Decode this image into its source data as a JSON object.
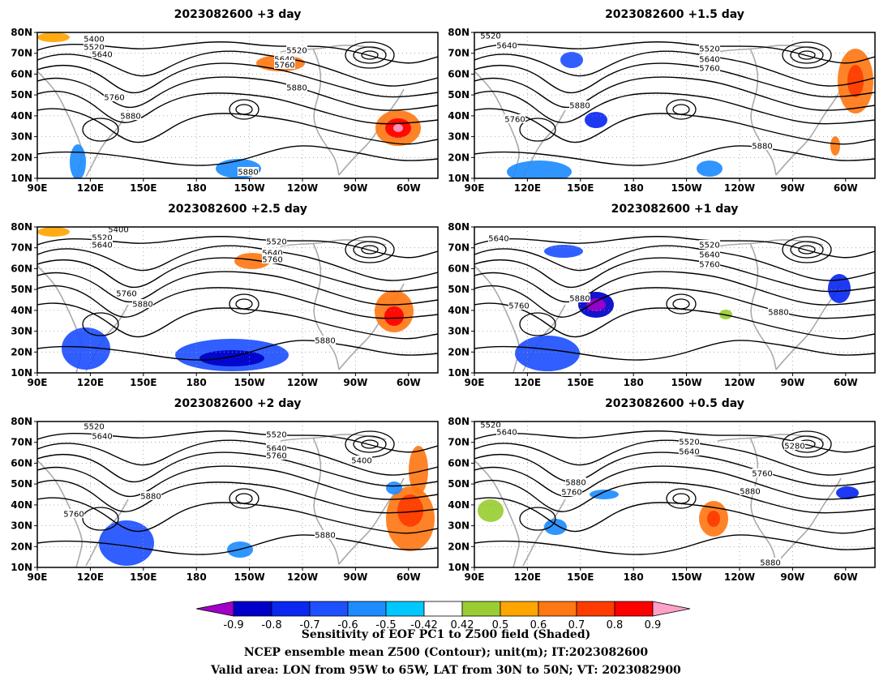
{
  "panels": [
    {
      "title": "2023082600 +3 day",
      "contour_labels": [
        "5400",
        "5520",
        "5640",
        "5520",
        "5640",
        "5760",
        "5760",
        "5880",
        "5880",
        "5880"
      ]
    },
    {
      "title": "2023082600 +1.5 day",
      "contour_labels": [
        "5520",
        "5640",
        "5520",
        "5640",
        "5760",
        "5880",
        "5760",
        "5880"
      ]
    },
    {
      "title": "2023082600 +2.5 day",
      "contour_labels": [
        "5400",
        "5520",
        "5640",
        "5520",
        "5640",
        "5760",
        "5760",
        "5880",
        "5880"
      ]
    },
    {
      "title": "2023082600 +1 day",
      "contour_labels": [
        "5640",
        "5520",
        "5640",
        "5760",
        "5880",
        "5760",
        "5880"
      ]
    },
    {
      "title": "2023082600 +2 day",
      "contour_labels": [
        "5520",
        "5640",
        "5520",
        "5640",
        "5760",
        "5400",
        "5880",
        "5760",
        "5880"
      ]
    },
    {
      "title": "2023082600 +0.5 day",
      "contour_labels": [
        "5520",
        "5640",
        "5520",
        "5640",
        "5280",
        "5760",
        "5880",
        "5760",
        "5880",
        "5880"
      ]
    }
  ],
  "axes": {
    "lon_ticks": [
      "90E",
      "120E",
      "150E",
      "180",
      "150W",
      "120W",
      "90W",
      "60W"
    ],
    "lat_ticks": [
      "80N",
      "70N",
      "60N",
      "50N",
      "40N",
      "30N",
      "20N",
      "10N"
    ]
  },
  "colorbar": {
    "labels": [
      "-0.9",
      "-0.8",
      "-0.7",
      "-0.6",
      "-0.5",
      "-0.42",
      "0.42",
      "0.5",
      "0.6",
      "0.7",
      "0.8",
      "0.9"
    ],
    "colors": [
      "#a000c8",
      "#0000c8",
      "#0a28f0",
      "#1e50ff",
      "#1e8cff",
      "#00c8ff",
      "#ffffff",
      "#9acd32",
      "#ffa500",
      "#ff7814",
      "#ff3c00",
      "#ff0000",
      "#ffa0c8"
    ]
  },
  "captions": [
    "Sensitivity of EOF PC1 to Z500 field (Shaded)",
    "NCEP ensemble mean Z500 (Contour); unit(m); IT:2023082600",
    "Valid area: LON from 95W to 65W, LAT from 30N to 50N; VT: 2023082900"
  ]
}
